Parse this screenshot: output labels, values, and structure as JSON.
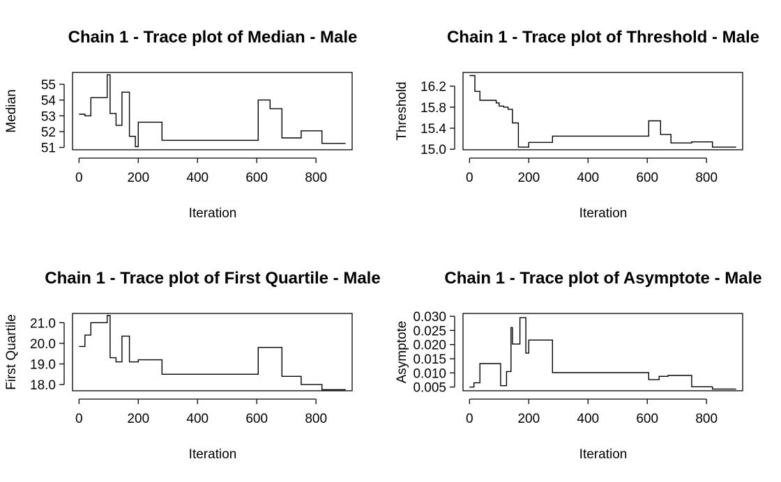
{
  "chart_data": [
    {
      "type": "line",
      "title": "Chain 1 - Trace plot of Median - Male",
      "xlabel": "Iteration",
      "ylabel": "Median",
      "xticks": [
        0,
        200,
        400,
        600,
        800
      ],
      "xtick_labels": [
        "0",
        "200",
        "400",
        "600",
        "800"
      ],
      "yticks": [
        51,
        52,
        53,
        54,
        55
      ],
      "ytick_labels": [
        "51",
        "52",
        "53",
        "54",
        "55"
      ],
      "xlim": [
        -22,
        922
      ],
      "ylim": [
        50.85,
        55.75
      ],
      "series": [
        {
          "x": [
            0,
            20,
            40,
            95,
            105,
            125,
            145,
            170,
            190,
            200,
            280,
            605,
            645,
            685,
            750,
            820,
            900
          ],
          "y": [
            53.1,
            53.0,
            54.15,
            55.6,
            53.15,
            52.4,
            54.5,
            51.7,
            51.05,
            52.6,
            51.45,
            54.0,
            53.45,
            51.6,
            52.05,
            51.25,
            51.25
          ]
        }
      ]
    },
    {
      "type": "line",
      "title": "Chain 1 - Trace plot of Threshold - Male",
      "xlabel": "Iteration",
      "ylabel": "Threshold",
      "xticks": [
        0,
        200,
        400,
        600,
        800
      ],
      "xtick_labels": [
        "0",
        "200",
        "400",
        "600",
        "800"
      ],
      "yticks": [
        15.0,
        15.4,
        15.8,
        16.2
      ],
      "ytick_labels": [
        "15.0",
        "15.4",
        "15.8",
        "16.2"
      ],
      "xlim": [
        -22,
        922
      ],
      "ylim": [
        14.99,
        16.46
      ],
      "series": [
        {
          "x": [
            0,
            18,
            35,
            90,
            100,
            115,
            130,
            145,
            165,
            200,
            280,
            605,
            645,
            680,
            750,
            820,
            900
          ],
          "y": [
            16.4,
            16.1,
            15.93,
            15.88,
            15.82,
            15.8,
            15.76,
            15.5,
            15.04,
            15.13,
            15.25,
            15.54,
            15.28,
            15.12,
            15.14,
            15.04,
            15.04
          ]
        }
      ]
    },
    {
      "type": "line",
      "title": "Chain 1 - Trace plot of First Quartile - Male",
      "xlabel": "Iteration",
      "ylabel": "First Quartile",
      "xticks": [
        0,
        200,
        400,
        600,
        800
      ],
      "xtick_labels": [
        "0",
        "200",
        "400",
        "600",
        "800"
      ],
      "yticks": [
        18.0,
        19.0,
        20.0,
        21.0
      ],
      "ytick_labels": [
        "18.0",
        "19.0",
        "20.0",
        "21.0"
      ],
      "xlim": [
        -22,
        922
      ],
      "ylim": [
        17.7,
        21.45
      ],
      "series": [
        {
          "x": [
            0,
            20,
            40,
            95,
            105,
            125,
            145,
            170,
            200,
            280,
            605,
            685,
            750,
            820,
            900
          ],
          "y": [
            19.85,
            20.4,
            21.0,
            21.35,
            19.3,
            19.1,
            20.35,
            19.1,
            19.2,
            18.5,
            19.8,
            18.4,
            18.0,
            17.75,
            17.75
          ]
        }
      ]
    },
    {
      "type": "line",
      "title": "Chain 1 - Trace plot of Asymptote - Male",
      "xlabel": "Iteration",
      "ylabel": "Asymptote",
      "xticks": [
        0,
        200,
        400,
        600,
        800
      ],
      "xtick_labels": [
        "0",
        "200",
        "400",
        "600",
        "800"
      ],
      "yticks": [
        0.005,
        0.01,
        0.015,
        0.02,
        0.025,
        0.03
      ],
      "ytick_labels": [
        "0.005",
        "0.010",
        "0.015",
        "0.020",
        "0.025",
        "0.030"
      ],
      "xlim": [
        -22,
        922
      ],
      "ylim": [
        0.0037,
        0.031
      ],
      "series": [
        {
          "x": [
            0,
            15,
            35,
            70,
            105,
            125,
            140,
            145,
            150,
            170,
            190,
            200,
            280,
            605,
            640,
            670,
            750,
            820,
            900
          ],
          "y": [
            0.005,
            0.0065,
            0.0133,
            0.0133,
            0.0055,
            0.0105,
            0.026,
            0.0202,
            0.0202,
            0.0295,
            0.017,
            0.0216,
            0.0101,
            0.0076,
            0.0088,
            0.0091,
            0.0051,
            0.0043,
            0.0043
          ]
        }
      ]
    }
  ]
}
